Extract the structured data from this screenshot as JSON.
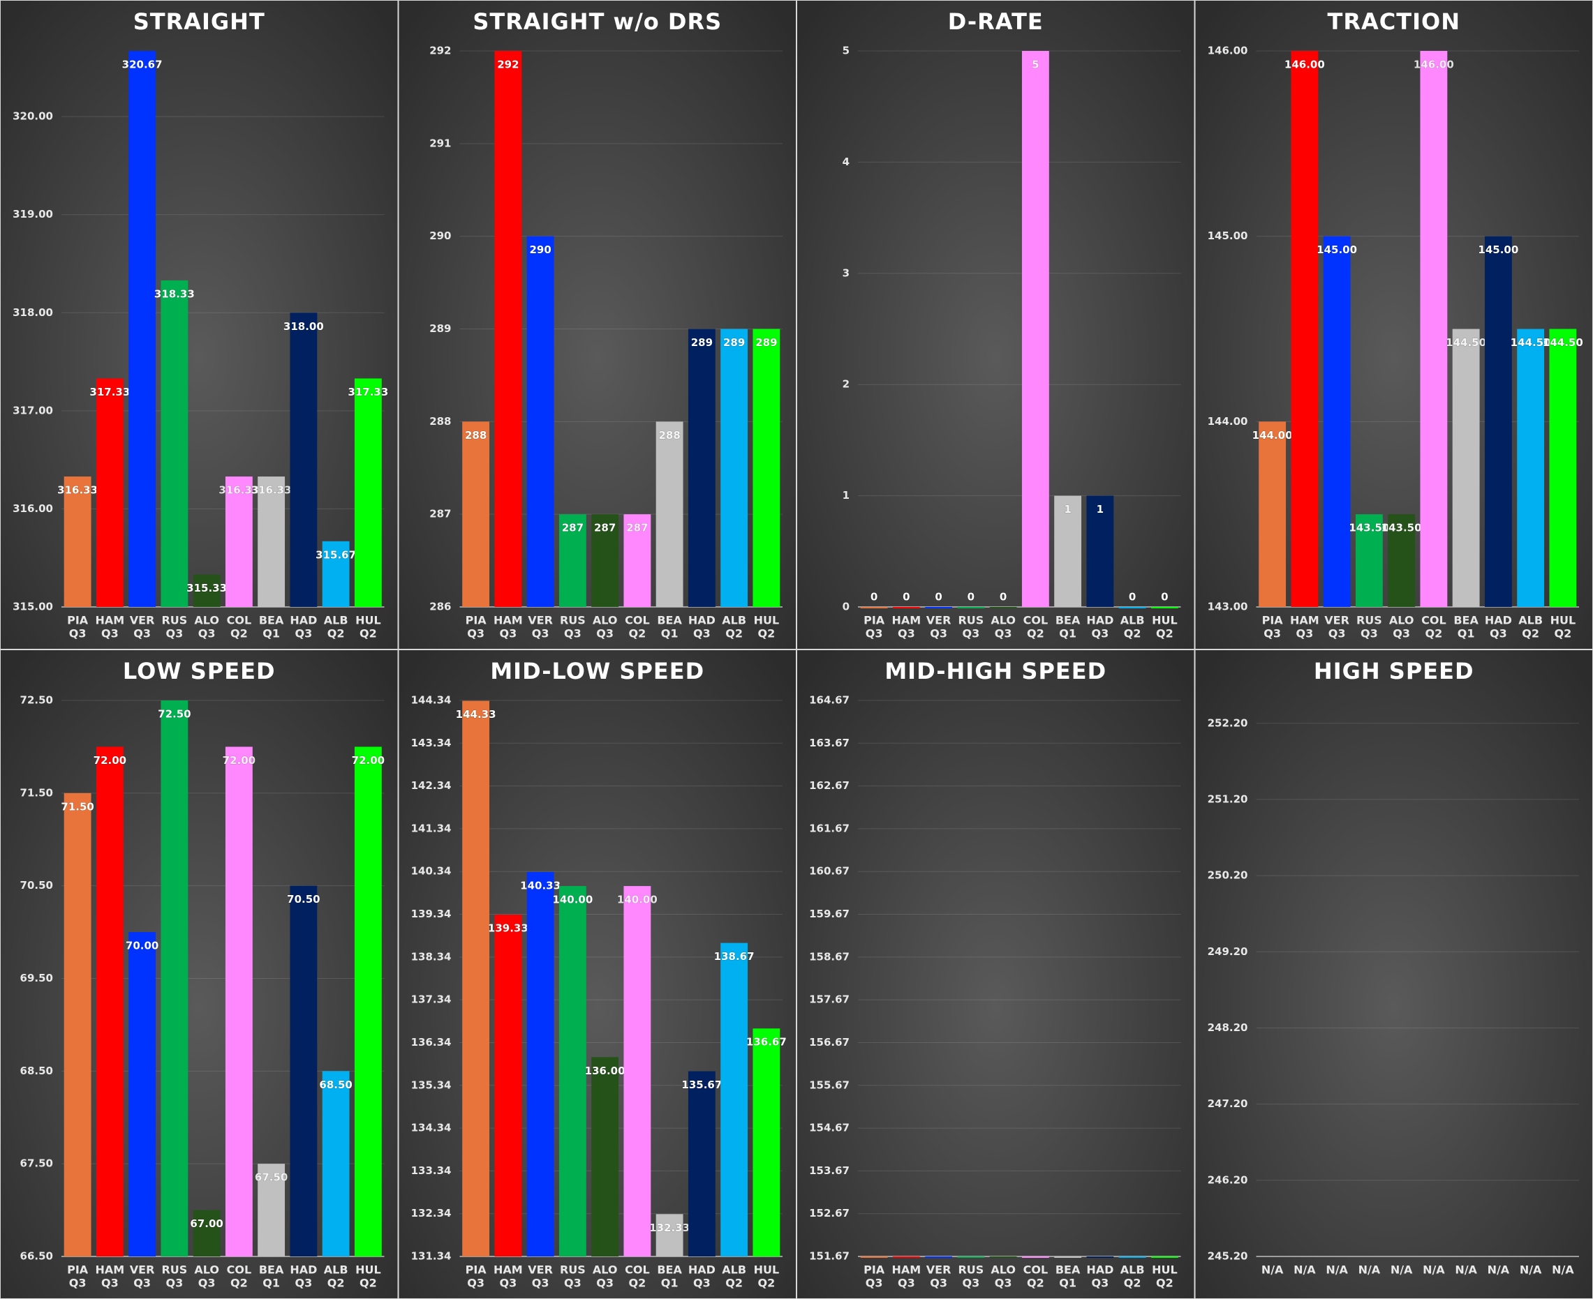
{
  "chart_data": [
    {
      "type": "bar",
      "title": "STRAIGHT",
      "categories": [
        [
          "PIA",
          "Q3"
        ],
        [
          "HAM",
          "Q3"
        ],
        [
          "VER",
          "Q3"
        ],
        [
          "RUS",
          "Q3"
        ],
        [
          "ALO",
          "Q3"
        ],
        [
          "COL",
          "Q2"
        ],
        [
          "BEA",
          "Q1"
        ],
        [
          "HAD",
          "Q3"
        ],
        [
          "ALB",
          "Q2"
        ],
        [
          "HUL",
          "Q2"
        ]
      ],
      "colors": [
        "#e8743b",
        "#ff0000",
        "#0033ff",
        "#00b050",
        "#245219",
        "#ff88ff",
        "#c0c0c0",
        "#002060",
        "#00b0f0",
        "#00ff00"
      ],
      "values": [
        316.33,
        317.33,
        320.67,
        318.33,
        315.33,
        316.33,
        316.33,
        318.0,
        315.67,
        317.33
      ],
      "value_labels": [
        "316.33",
        "317.33",
        "320.67",
        "318.33",
        "315.33",
        "316.33",
        "316.33",
        "318.00",
        "315.67",
        "317.33"
      ],
      "data_labels": true,
      "ylim": [
        315,
        320.67
      ],
      "yticks": [
        {
          "value": 315,
          "label": "315.00"
        },
        {
          "value": 316,
          "label": "316.00"
        },
        {
          "value": 317,
          "label": "317.00"
        },
        {
          "value": 318,
          "label": "318.00"
        },
        {
          "value": 319,
          "label": "319.00"
        },
        {
          "value": 320,
          "label": "320.00"
        }
      ]
    },
    {
      "type": "bar",
      "title": "STRAIGHT w/o DRS",
      "categories": [
        [
          "PIA",
          "Q3"
        ],
        [
          "HAM",
          "Q3"
        ],
        [
          "VER",
          "Q3"
        ],
        [
          "RUS",
          "Q3"
        ],
        [
          "ALO",
          "Q3"
        ],
        [
          "COL",
          "Q2"
        ],
        [
          "BEA",
          "Q1"
        ],
        [
          "HAD",
          "Q3"
        ],
        [
          "ALB",
          "Q2"
        ],
        [
          "HUL",
          "Q2"
        ]
      ],
      "colors": [
        "#e8743b",
        "#ff0000",
        "#0033ff",
        "#00b050",
        "#245219",
        "#ff88ff",
        "#c0c0c0",
        "#002060",
        "#00b0f0",
        "#00ff00"
      ],
      "values": [
        288,
        292,
        290,
        287,
        287,
        287,
        288,
        289,
        289,
        289
      ],
      "data_labels": true,
      "ylim": [
        286,
        292
      ],
      "yticks": [
        286,
        287,
        288,
        289,
        290,
        291,
        292
      ]
    },
    {
      "type": "bar",
      "title": "D-RATE",
      "categories": [
        [
          "PIA",
          "Q3"
        ],
        [
          "HAM",
          "Q3"
        ],
        [
          "VER",
          "Q3"
        ],
        [
          "RUS",
          "Q3"
        ],
        [
          "ALO",
          "Q3"
        ],
        [
          "COL",
          "Q2"
        ],
        [
          "BEA",
          "Q1"
        ],
        [
          "HAD",
          "Q3"
        ],
        [
          "ALB",
          "Q2"
        ],
        [
          "HUL",
          "Q2"
        ]
      ],
      "colors": [
        "#e8743b",
        "#ff0000",
        "#0033ff",
        "#00b050",
        "#245219",
        "#ff88ff",
        "#c0c0c0",
        "#002060",
        "#00b0f0",
        "#00ff00"
      ],
      "values": [
        0,
        0,
        0,
        0,
        0,
        5,
        1,
        1,
        0,
        0
      ],
      "data_labels": true,
      "ylim": [
        0,
        5
      ],
      "yticks": [
        0,
        1,
        2,
        3,
        4,
        5
      ]
    },
    {
      "type": "bar",
      "title": "TRACTION",
      "categories": [
        [
          "PIA",
          "Q3"
        ],
        [
          "HAM",
          "Q3"
        ],
        [
          "VER",
          "Q3"
        ],
        [
          "RUS",
          "Q3"
        ],
        [
          "ALO",
          "Q3"
        ],
        [
          "COL",
          "Q2"
        ],
        [
          "BEA",
          "Q1"
        ],
        [
          "HAD",
          "Q3"
        ],
        [
          "ALB",
          "Q2"
        ],
        [
          "HUL",
          "Q2"
        ]
      ],
      "colors": [
        "#e8743b",
        "#ff0000",
        "#0033ff",
        "#00b050",
        "#245219",
        "#ff88ff",
        "#c0c0c0",
        "#002060",
        "#00b0f0",
        "#00ff00"
      ],
      "values": [
        144,
        146,
        145,
        143.5,
        143.5,
        146,
        144.5,
        145,
        144.5,
        144.5
      ],
      "value_labels": [
        "144.00",
        "146.00",
        "145.00",
        "143.50",
        "143.50",
        "146.00",
        "144.50",
        "145.00",
        "144.50",
        "144.50"
      ],
      "data_labels": true,
      "ylim": [
        143,
        146
      ],
      "yticks": [
        {
          "value": 143,
          "label": "143.00"
        },
        {
          "value": 144,
          "label": "144.00"
        },
        {
          "value": 145,
          "label": "145.00"
        },
        {
          "value": 146,
          "label": "146.00"
        }
      ]
    },
    {
      "type": "bar",
      "title": "LOW SPEED",
      "categories": [
        [
          "PIA",
          "Q3"
        ],
        [
          "HAM",
          "Q3"
        ],
        [
          "VER",
          "Q3"
        ],
        [
          "RUS",
          "Q3"
        ],
        [
          "ALO",
          "Q3"
        ],
        [
          "COL",
          "Q2"
        ],
        [
          "BEA",
          "Q1"
        ],
        [
          "HAD",
          "Q3"
        ],
        [
          "ALB",
          "Q2"
        ],
        [
          "HUL",
          "Q2"
        ]
      ],
      "colors": [
        "#e8743b",
        "#ff0000",
        "#0033ff",
        "#00b050",
        "#245219",
        "#ff88ff",
        "#c0c0c0",
        "#002060",
        "#00b0f0",
        "#00ff00"
      ],
      "values": [
        71.5,
        72,
        70,
        72.5,
        67,
        72,
        67.5,
        70.5,
        68.5,
        72
      ],
      "value_labels": [
        "71.50",
        "72.00",
        "70.00",
        "72.50",
        "67.00",
        "72.00",
        "67.50",
        "70.50",
        "68.50",
        "72.00"
      ],
      "data_labels": true,
      "ylim": [
        66.5,
        72.5
      ],
      "yticks": [
        {
          "value": 66.5,
          "label": "66.50"
        },
        {
          "value": 67.5,
          "label": "67.50"
        },
        {
          "value": 68.5,
          "label": "68.50"
        },
        {
          "value": 69.5,
          "label": "69.50"
        },
        {
          "value": 70.5,
          "label": "70.50"
        },
        {
          "value": 71.5,
          "label": "71.50"
        },
        {
          "value": 72.5,
          "label": "72.50"
        }
      ]
    },
    {
      "type": "bar",
      "title": "MID-LOW SPEED",
      "categories": [
        [
          "PIA",
          "Q3"
        ],
        [
          "HAM",
          "Q3"
        ],
        [
          "VER",
          "Q3"
        ],
        [
          "RUS",
          "Q3"
        ],
        [
          "ALO",
          "Q3"
        ],
        [
          "COL",
          "Q2"
        ],
        [
          "BEA",
          "Q1"
        ],
        [
          "HAD",
          "Q3"
        ],
        [
          "ALB",
          "Q2"
        ],
        [
          "HUL",
          "Q2"
        ]
      ],
      "colors": [
        "#e8743b",
        "#ff0000",
        "#0033ff",
        "#00b050",
        "#245219",
        "#ff88ff",
        "#c0c0c0",
        "#002060",
        "#00b0f0",
        "#00ff00"
      ],
      "values": [
        144.33,
        139.33,
        140.33,
        140,
        136,
        140,
        132.33,
        135.67,
        138.67,
        136.67
      ],
      "value_labels": [
        "144.33",
        "139.33",
        "140.33",
        "140.00",
        "136.00",
        "140.00",
        "132.33",
        "135.67",
        "138.67",
        "136.67"
      ],
      "data_labels": true,
      "ylim": [
        131.34,
        144.34
      ],
      "yticks": [
        131.34,
        132.34,
        133.34,
        134.34,
        135.34,
        136.34,
        137.34,
        138.34,
        139.34,
        140.34,
        141.34,
        142.34,
        143.34,
        144.34
      ]
    },
    {
      "type": "bar",
      "title": "MID-HIGH SPEED",
      "categories": [
        [
          "PIA",
          "Q3"
        ],
        [
          "HAM",
          "Q3"
        ],
        [
          "VER",
          "Q3"
        ],
        [
          "RUS",
          "Q3"
        ],
        [
          "ALO",
          "Q3"
        ],
        [
          "COL",
          "Q2"
        ],
        [
          "BEA",
          "Q1"
        ],
        [
          "HAD",
          "Q3"
        ],
        [
          "ALB",
          "Q2"
        ],
        [
          "HUL",
          "Q2"
        ]
      ],
      "colors": [
        "#e8743b",
        "#ff0000",
        "#0033ff",
        "#00b050",
        "#245219",
        "#ff88ff",
        "#c0c0c0",
        "#002060",
        "#00b0f0",
        "#00ff00"
      ],
      "values": [
        151.67,
        151.67,
        151.67,
        151.67,
        151.67,
        151.67,
        151.67,
        151.67,
        151.67,
        151.67
      ],
      "data_labels": false,
      "ylim": [
        151.67,
        164.67
      ],
      "yticks": [
        151.67,
        152.67,
        153.67,
        154.67,
        155.67,
        156.67,
        157.67,
        158.67,
        159.67,
        160.67,
        161.67,
        162.67,
        163.67,
        164.67
      ]
    },
    {
      "type": "bar",
      "title": "HIGH SPEED",
      "categories": [
        "N/A",
        "N/A",
        "N/A",
        "N/A",
        "N/A",
        "N/A",
        "N/A",
        "N/A",
        "N/A",
        "N/A"
      ],
      "colors": [
        "#e8743b",
        "#ff0000",
        "#0033ff",
        "#00b050",
        "#245219",
        "#ff88ff",
        "#c0c0c0",
        "#002060",
        "#00b0f0",
        "#00ff00"
      ],
      "values": [
        null,
        null,
        null,
        null,
        null,
        null,
        null,
        null,
        null,
        null
      ],
      "data_labels": false,
      "ylim": [
        245.2,
        252.5
      ],
      "yticks": [
        {
          "value": 245.2,
          "label": "245.20"
        },
        {
          "value": 246.2,
          "label": "246.20"
        },
        {
          "value": 247.2,
          "label": "247.20"
        },
        {
          "value": 248.2,
          "label": "248.20"
        },
        {
          "value": 249.2,
          "label": "249.20"
        },
        {
          "value": 250.2,
          "label": "250.20"
        },
        {
          "value": 251.2,
          "label": "251.20"
        },
        {
          "value": 252.2,
          "label": "252.20"
        }
      ]
    }
  ]
}
